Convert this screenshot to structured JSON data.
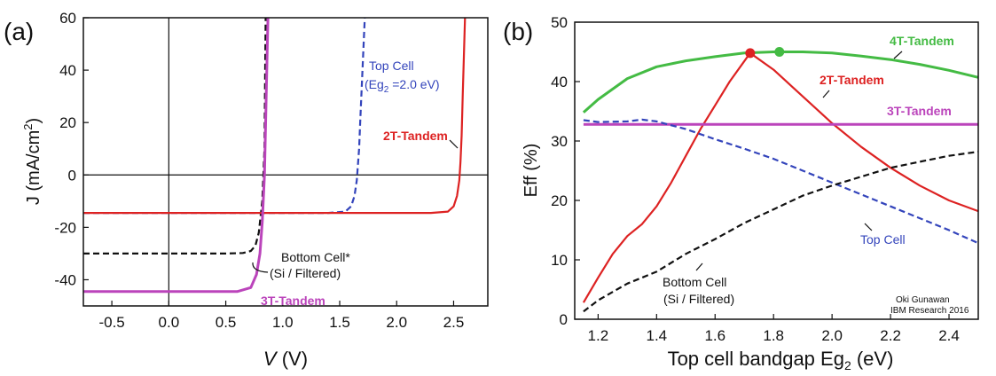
{
  "chart_data": [
    {
      "type": "line",
      "panel_label": "(a)",
      "xlabel": "V",
      "xlabel_unit": " (V)",
      "ylabel": "J (mA/cm",
      "ylabel_sup": "2",
      "ylabel_close": ")",
      "xlim": [
        -0.75,
        2.8
      ],
      "ylim": [
        -50,
        60
      ],
      "xticks": [
        "-0.5",
        "0.0",
        "0.5",
        "1.0",
        "1.5",
        "2.0",
        "2.5"
      ],
      "xtick_values": [
        -0.5,
        0,
        0.5,
        1,
        1.5,
        2,
        2.5
      ],
      "yticks": [
        "-40",
        "-20",
        "0",
        "20",
        "40",
        "60"
      ],
      "ytick_values": [
        -40,
        -20,
        0,
        20,
        40,
        60
      ],
      "series": [
        {
          "name": "Bottom Cell*",
          "color": "#111111",
          "dash": true,
          "x": [
            -0.75,
            0.5,
            0.65,
            0.72,
            0.76,
            0.79,
            0.82,
            0.84,
            0.85
          ],
          "y": [
            -30,
            -30,
            -29.8,
            -29,
            -27,
            -22,
            -10,
            10,
            60
          ]
        },
        {
          "name": "Top Cell",
          "color": "#3344bb",
          "dash": true,
          "x": [
            -0.75,
            1.4,
            1.55,
            1.6,
            1.63,
            1.65,
            1.67,
            1.68,
            1.7,
            1.72
          ],
          "y": [
            -14.5,
            -14.5,
            -14,
            -12,
            -8,
            -2,
            10,
            20,
            40,
            60
          ]
        },
        {
          "name": "2T-Tandem",
          "color": "#dd2222",
          "dash": false,
          "x": [
            -0.75,
            2.3,
            2.45,
            2.5,
            2.53,
            2.55,
            2.56,
            2.57,
            2.58,
            2.59,
            2.6
          ],
          "y": [
            -14.5,
            -14.5,
            -14,
            -12,
            -8,
            -2,
            5,
            15,
            30,
            45,
            60
          ]
        },
        {
          "name": "3T-Tandem",
          "color": "#bb44bb",
          "dash": false,
          "x": [
            -0.75,
            0.6,
            0.72,
            0.77,
            0.8,
            0.82,
            0.84,
            0.85,
            0.86,
            0.87
          ],
          "y": [
            -44.5,
            -44.5,
            -43,
            -38,
            -30,
            -18,
            0,
            20,
            40,
            60
          ]
        }
      ],
      "annotations": [
        {
          "text": "Top Cell",
          "color": "#3344bb"
        },
        {
          "text": "(Eg",
          "sub": "2",
          "tail": " =2.0 eV)",
          "color": "#3344bb"
        },
        {
          "text": "2T-Tandem",
          "color": "#dd2222"
        },
        {
          "text": "Bottom Cell*",
          "color": "#111111"
        },
        {
          "text": "(Si / Filtered)",
          "color": "#111111"
        },
        {
          "text": "3T-Tandem",
          "color": "#bb44bb"
        }
      ]
    },
    {
      "type": "line",
      "panel_label": "(b)",
      "xlabel": "Top cell bandgap Eg",
      "xlabel_sub": "2",
      "xlabel_unit": " (eV)",
      "ylabel": "Eff (%)",
      "xlim": [
        1.12,
        2.5
      ],
      "ylim": [
        0,
        50
      ],
      "xticks": [
        "1.2",
        "1.4",
        "1.6",
        "1.8",
        "2.0",
        "2.2",
        "2.4"
      ],
      "xtick_values": [
        1.2,
        1.4,
        1.6,
        1.8,
        2.0,
        2.2,
        2.4
      ],
      "yticks": [
        "0",
        "10",
        "20",
        "30",
        "40",
        "50"
      ],
      "ytick_values": [
        0,
        10,
        20,
        30,
        40,
        50
      ],
      "series": [
        {
          "name": "4T-Tandem",
          "color": "#44bb44",
          "dash": false,
          "x": [
            1.15,
            1.2,
            1.3,
            1.4,
            1.5,
            1.6,
            1.7,
            1.8,
            1.9,
            2.0,
            2.1,
            2.2,
            2.3,
            2.4,
            2.5
          ],
          "y": [
            34.8,
            37,
            40.5,
            42.5,
            43.5,
            44.2,
            44.8,
            45,
            45,
            44.8,
            44.3,
            43.7,
            42.9,
            41.9,
            40.7
          ]
        },
        {
          "name": "2T-Tandem",
          "color": "#dd2222",
          "dash": false,
          "x": [
            1.15,
            1.2,
            1.25,
            1.3,
            1.35,
            1.4,
            1.45,
            1.5,
            1.55,
            1.6,
            1.65,
            1.72,
            1.8,
            1.9,
            2.0,
            2.1,
            2.2,
            2.3,
            2.4,
            2.5
          ],
          "y": [
            2.8,
            7,
            11,
            14,
            16,
            19,
            23,
            27.5,
            32,
            36,
            40,
            44.8,
            42,
            37.5,
            33,
            29,
            25.5,
            22.5,
            20,
            18.2
          ]
        },
        {
          "name": "3T-Tandem",
          "color": "#bb44bb",
          "dash": false,
          "x": [
            1.15,
            2.5
          ],
          "y": [
            32.8,
            32.8
          ]
        },
        {
          "name": "Top Cell",
          "color": "#3344bb",
          "dash": true,
          "x": [
            1.15,
            1.2,
            1.3,
            1.35,
            1.4,
            1.5,
            1.6,
            1.7,
            1.8,
            1.9,
            2.0,
            2.1,
            2.2,
            2.3,
            2.4,
            2.5
          ],
          "y": [
            33.5,
            33.2,
            33.3,
            33.6,
            33.3,
            32,
            30.3,
            28.7,
            27,
            25,
            23,
            21,
            19,
            17,
            15,
            12.8
          ]
        },
        {
          "name": "Bottom Cell",
          "color": "#111111",
          "dash": true,
          "x": [
            1.15,
            1.2,
            1.3,
            1.4,
            1.5,
            1.6,
            1.7,
            1.8,
            1.9,
            2.0,
            2.1,
            2.2,
            2.3,
            2.4,
            2.5
          ],
          "y": [
            1.3,
            3.2,
            6,
            8,
            11,
            13.5,
            16.2,
            18.5,
            20.8,
            22.5,
            24,
            25.5,
            26.5,
            27.5,
            28.2
          ]
        }
      ],
      "markers": [
        {
          "name": "2T-Tandem max",
          "x": 1.72,
          "y": 44.8,
          "color": "#dd2222"
        },
        {
          "name": "4T-Tandem max",
          "x": 1.82,
          "y": 45,
          "color": "#44bb44"
        }
      ],
      "annotations": [
        {
          "text": "4T-Tandem",
          "color": "#44bb44"
        },
        {
          "text": "2T-Tandem",
          "color": "#dd2222"
        },
        {
          "text": "3T-Tandem",
          "color": "#bb44bb"
        },
        {
          "text": "Top Cell",
          "color": "#3344bb"
        },
        {
          "text": "Bottom Cell",
          "color": "#111111"
        },
        {
          "text": "(Si / Filtered)",
          "color": "#111111"
        },
        {
          "text": "Oki Gunawan",
          "color": "#111111"
        },
        {
          "text": "IBM Research 2016",
          "color": "#111111"
        }
      ]
    }
  ]
}
